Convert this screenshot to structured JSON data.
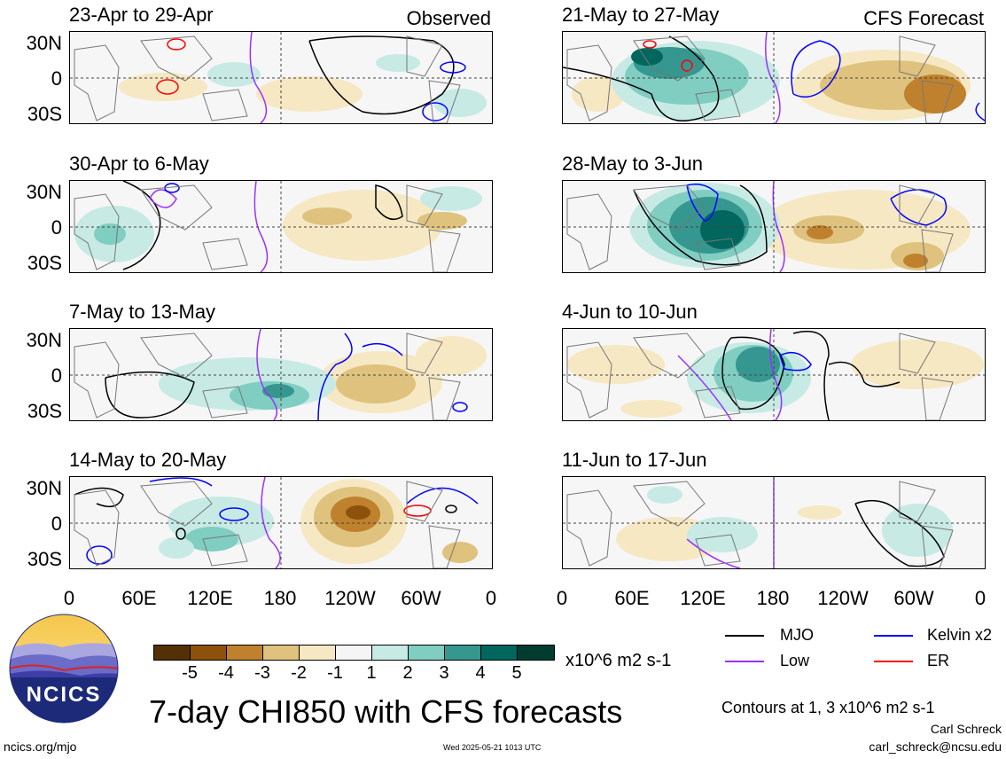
{
  "panels_left": [
    {
      "title": "23-Apr to 29-Apr",
      "tag": "Observed"
    },
    {
      "title": "30-Apr to 6-May",
      "tag": ""
    },
    {
      "title": "7-May to 13-May",
      "tag": ""
    },
    {
      "title": "14-May to 20-May",
      "tag": ""
    }
  ],
  "panels_right": [
    {
      "title": "21-May to 27-May",
      "tag": "CFS Forecast"
    },
    {
      "title": "28-May to 3-Jun",
      "tag": ""
    },
    {
      "title": "4-Jun to 10-Jun",
      "tag": ""
    },
    {
      "title": "11-Jun to 17-Jun",
      "tag": ""
    }
  ],
  "lat_labels": [
    "30N",
    "0",
    "30S"
  ],
  "lon_labels": [
    "0",
    "60E",
    "120E",
    "180",
    "120W",
    "60W",
    "0"
  ],
  "colorbar": {
    "unit": "x10^6 m2 s-1",
    "labels": [
      "-5",
      "-4",
      "-3",
      "-2",
      "-1",
      "1",
      "2",
      "3",
      "4",
      "5"
    ],
    "colors": [
      "#543005",
      "#8c510a",
      "#bf812d",
      "#dfc27d",
      "#f6e8c3",
      "#f5f5f5",
      "#c7eae5",
      "#80cdc1",
      "#35978f",
      "#01665e",
      "#003c30"
    ]
  },
  "legend": {
    "mjo": {
      "label": "MJO",
      "color": "#000000"
    },
    "kelvin": {
      "label": "Kelvin x2",
      "color": "#0000ff"
    },
    "low": {
      "label": "Low",
      "color": "#9b30ff"
    },
    "er": {
      "label": "ER",
      "color": "#ff0000"
    }
  },
  "contours_note": "Contours at 1, 3 x10^6 m2 s-1",
  "main_title": "7-day CHI850 with CFS forecasts",
  "logo_text": "NCICS",
  "footer": {
    "url": "ncics.org/mjo",
    "timestamp": "Wed 2025-05-21 1013 UTC",
    "author": "Carl Schreck",
    "email": "carl_schreck@ncsu.edu"
  }
}
